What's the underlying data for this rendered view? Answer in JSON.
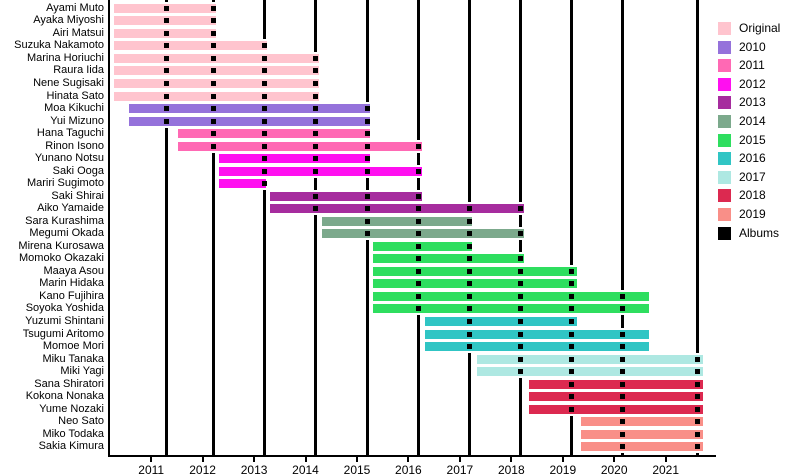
{
  "chart_data": {
    "type": "bar",
    "subtype": "horizontal-gantt-timeline",
    "title": "",
    "xlabel": "",
    "ylabel": "",
    "grid": false,
    "x_axis": {
      "tick_years": [
        2011,
        2012,
        2013,
        2014,
        2015,
        2016,
        2017,
        2018,
        2019,
        2020,
        2021
      ],
      "tick_labels": [
        "2011",
        "2012",
        "2013",
        "2014",
        "2015",
        "2016",
        "2017",
        "2018",
        "2019",
        "2020",
        "2021"
      ],
      "range": [
        2010.2,
        2021.9
      ]
    },
    "legend": {
      "position": "right",
      "items": [
        {
          "label": "Original",
          "color": "#FFC4CE"
        },
        {
          "label": "2010",
          "color": "#9572DB"
        },
        {
          "label": "2011",
          "color": "#FF69B4"
        },
        {
          "label": "2012",
          "color": "#FF0FF0"
        },
        {
          "label": "2013",
          "color": "#A62C9E"
        },
        {
          "label": "2014",
          "color": "#7CA98C"
        },
        {
          "label": "2015",
          "color": "#2EDE5F"
        },
        {
          "label": "2016",
          "color": "#30C5C4"
        },
        {
          "label": "2017",
          "color": "#AEE8E2"
        },
        {
          "label": "2018",
          "color": "#DC2950"
        },
        {
          "label": "2019",
          "color": "#F98F88"
        },
        {
          "label": "Albums",
          "color": "#000000"
        }
      ]
    },
    "albums": {
      "label": "Albums",
      "color": "#000000",
      "years": [
        2011.3,
        2012.22,
        2013.2,
        2014.2,
        2015.2,
        2016.2,
        2017.18,
        2018.18,
        2019.16,
        2020.16,
        2021.62
      ]
    },
    "group_colors": {
      "Original": "#FFC4CE",
      "2010": "#9572DB",
      "2011": "#FF69B4",
      "2012": "#FF0FF0",
      "2013": "#A62C9E",
      "2014": "#7CA98C",
      "2015": "#2EDE5F",
      "2016": "#30C5C4",
      "2017": "#AEE8E2",
      "2018": "#DC2950",
      "2019": "#F98F88"
    },
    "members": [
      {
        "name": "Ayami Muto",
        "joined": "Original",
        "start": 2010.27,
        "end": 2012.26
      },
      {
        "name": "Ayaka Miyoshi",
        "joined": "Original",
        "start": 2010.27,
        "end": 2012.26
      },
      {
        "name": "Airi Matsui",
        "joined": "Original",
        "start": 2010.27,
        "end": 2012.26
      },
      {
        "name": "Suzuka Nakamoto",
        "joined": "Original",
        "start": 2010.27,
        "end": 2013.26
      },
      {
        "name": "Marina Horiuchi",
        "joined": "Original",
        "start": 2010.27,
        "end": 2014.26
      },
      {
        "name": "Raura Iida",
        "joined": "Original",
        "start": 2010.27,
        "end": 2014.26
      },
      {
        "name": "Nene Sugisaki",
        "joined": "Original",
        "start": 2010.27,
        "end": 2014.26
      },
      {
        "name": "Hinata Sato",
        "joined": "Original",
        "start": 2010.27,
        "end": 2014.26
      },
      {
        "name": "Moa Kikuchi",
        "joined": "2010",
        "start": 2010.57,
        "end": 2015.25
      },
      {
        "name": "Yui Mizuno",
        "joined": "2010",
        "start": 2010.57,
        "end": 2015.25
      },
      {
        "name": "Hana Taguchi",
        "joined": "2011",
        "start": 2011.52,
        "end": 2015.25
      },
      {
        "name": "Rinon Isono",
        "joined": "2011",
        "start": 2011.52,
        "end": 2016.26
      },
      {
        "name": "Yunano Notsu",
        "joined": "2012",
        "start": 2012.32,
        "end": 2015.25
      },
      {
        "name": "Saki Ooga",
        "joined": "2012",
        "start": 2012.32,
        "end": 2016.26
      },
      {
        "name": "Mariri Sugimoto",
        "joined": "2012",
        "start": 2012.32,
        "end": 2013.23
      },
      {
        "name": "Saki Shirai",
        "joined": "2013",
        "start": 2013.3,
        "end": 2016.26
      },
      {
        "name": "Aiko Yamaide",
        "joined": "2013",
        "start": 2013.3,
        "end": 2018.24
      },
      {
        "name": "Sara Kurashima",
        "joined": "2014",
        "start": 2014.31,
        "end": 2017.24
      },
      {
        "name": "Megumi Okada",
        "joined": "2014",
        "start": 2014.31,
        "end": 2018.24
      },
      {
        "name": "Mirena Kurosawa",
        "joined": "2015",
        "start": 2015.32,
        "end": 2017.24
      },
      {
        "name": "Momoko Okazaki",
        "joined": "2015",
        "start": 2015.32,
        "end": 2018.24
      },
      {
        "name": "Maaya Asou",
        "joined": "2015",
        "start": 2015.32,
        "end": 2019.28
      },
      {
        "name": "Marin Hidaka",
        "joined": "2015",
        "start": 2015.32,
        "end": 2019.28
      },
      {
        "name": "Kano Fujihira",
        "joined": "2015",
        "start": 2015.32,
        "end": 2020.68
      },
      {
        "name": "Soyoka Yoshida",
        "joined": "2015",
        "start": 2015.32,
        "end": 2020.68
      },
      {
        "name": "Yuzumi Shintani",
        "joined": "2016",
        "start": 2016.33,
        "end": 2019.28
      },
      {
        "name": "Tsugumi Aritomo",
        "joined": "2016",
        "start": 2016.33,
        "end": 2020.68
      },
      {
        "name": "Momoe Mori",
        "joined": "2016",
        "start": 2016.33,
        "end": 2020.68
      },
      {
        "name": "Miku Tanaka",
        "joined": "2017",
        "start": 2017.34,
        "end": 2021.72
      },
      {
        "name": "Miki Yagi",
        "joined": "2017",
        "start": 2017.34,
        "end": 2021.72
      },
      {
        "name": "Sana Shiratori",
        "joined": "2018",
        "start": 2018.35,
        "end": 2021.72
      },
      {
        "name": "Kokona Nonaka",
        "joined": "2018",
        "start": 2018.35,
        "end": 2021.72
      },
      {
        "name": "Yume Nozaki",
        "joined": "2018",
        "start": 2018.35,
        "end": 2021.72
      },
      {
        "name": "Neo Sato",
        "joined": "2019",
        "start": 2019.36,
        "end": 2021.72
      },
      {
        "name": "Miko Todaka",
        "joined": "2019",
        "start": 2019.36,
        "end": 2021.72
      },
      {
        "name": "Sakia Kimura",
        "joined": "2019",
        "start": 2019.36,
        "end": 2021.72
      }
    ]
  }
}
